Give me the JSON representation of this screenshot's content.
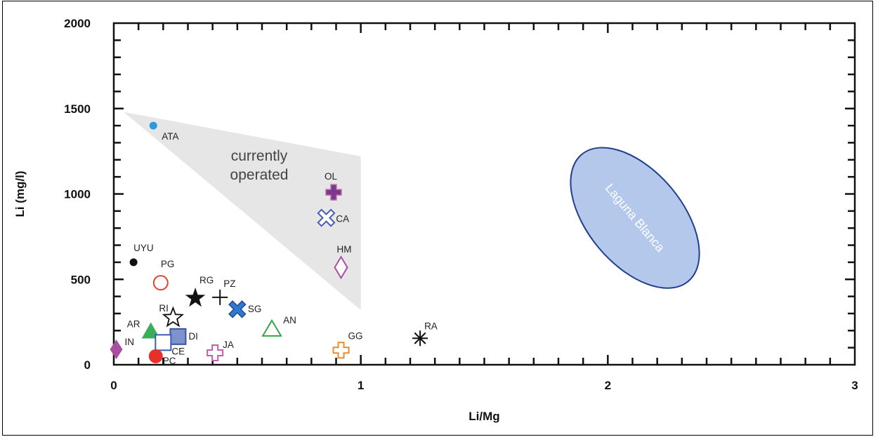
{
  "chart_data": {
    "type": "scatter",
    "title": "",
    "xlabel": "Li/Mg",
    "ylabel": "Li (mg/l)",
    "xlim": [
      0,
      3
    ],
    "ylim": [
      0,
      2000
    ],
    "x_ticks": [
      0,
      1,
      2,
      3
    ],
    "x_tick_labels": [
      "0",
      "1",
      "2",
      "3"
    ],
    "y_ticks": [
      0,
      500,
      1000,
      1500,
      2000
    ],
    "y_tick_labels": [
      "0",
      "500",
      "1000",
      "1500",
      "2000"
    ],
    "grid": false,
    "points": [
      {
        "label": "ATA",
        "x": 0.16,
        "y": 1400,
        "marker": "circle-filled-small",
        "color": "#2a9ad8"
      },
      {
        "label": "OL",
        "x": 0.89,
        "y": 1010,
        "marker": "plus-thick",
        "color": "#7a3a8c"
      },
      {
        "label": "CA",
        "x": 0.86,
        "y": 860,
        "marker": "x-outline",
        "color": "#4a5db0"
      },
      {
        "label": "HM",
        "x": 0.92,
        "y": 570,
        "marker": "diamond-open",
        "color": "#b04aa0"
      },
      {
        "label": "UYU",
        "x": 0.08,
        "y": 600,
        "marker": "circle-filled-small",
        "color": "#111111"
      },
      {
        "label": "PG",
        "x": 0.19,
        "y": 480,
        "marker": "circle-open",
        "color": "#e0442e"
      },
      {
        "label": "RG",
        "x": 0.33,
        "y": 390,
        "marker": "star-filled",
        "color": "#111111"
      },
      {
        "label": "PZ",
        "x": 0.43,
        "y": 395,
        "marker": "plus-thin",
        "color": "#111111"
      },
      {
        "label": "SG",
        "x": 0.5,
        "y": 325,
        "marker": "x-thick",
        "color": "#2f7ad0"
      },
      {
        "label": "RI",
        "x": 0.24,
        "y": 275,
        "marker": "star-open",
        "color": "#111111"
      },
      {
        "label": "AN",
        "x": 0.64,
        "y": 210,
        "marker": "triangle-open",
        "color": "#2ea84a"
      },
      {
        "label": "AR",
        "x": 0.15,
        "y": 195,
        "marker": "triangle-filled",
        "color": "#3aad5a"
      },
      {
        "label": "DI",
        "x": 0.26,
        "y": 165,
        "marker": "square-filled",
        "color": "#7e92cc"
      },
      {
        "label": "CE",
        "x": 0.2,
        "y": 130,
        "marker": "square-open",
        "color": "#3a5fb0"
      },
      {
        "label": "GG",
        "x": 0.92,
        "y": 85,
        "marker": "plus-open",
        "color": "#f08a2a"
      },
      {
        "label": "RA",
        "x": 1.24,
        "y": 155,
        "marker": "asterisk",
        "color": "#111111"
      },
      {
        "label": "JA",
        "x": 0.41,
        "y": 70,
        "marker": "plus-open",
        "color": "#c060a8"
      },
      {
        "label": "IN",
        "x": 0.01,
        "y": 90,
        "marker": "diamond-filled",
        "color": "#a84fa0"
      },
      {
        "label": "PC",
        "x": 0.17,
        "y": 50,
        "marker": "circle-filled",
        "color": "#e8302a"
      }
    ],
    "regions": [
      {
        "label": "currently operated",
        "shape": "polygon",
        "vertices": [
          [
            0.04,
            1480
          ],
          [
            1.0,
            1220
          ],
          [
            1.0,
            320
          ]
        ],
        "color": "#e6e6e6"
      },
      {
        "label": "Laguna Blanca",
        "shape": "ellipse",
        "center": [
          2.11,
          860
        ],
        "radius_x_data": 0.32,
        "radius_y_data": 270,
        "rotation_deg": 50,
        "color": "#b4c8ec",
        "border_color": "#1f3f8a"
      }
    ],
    "region_label_lines": {
      "currently_operated": [
        "currently",
        "operated"
      ],
      "laguna_blanca": "Laguna Blanca"
    }
  }
}
